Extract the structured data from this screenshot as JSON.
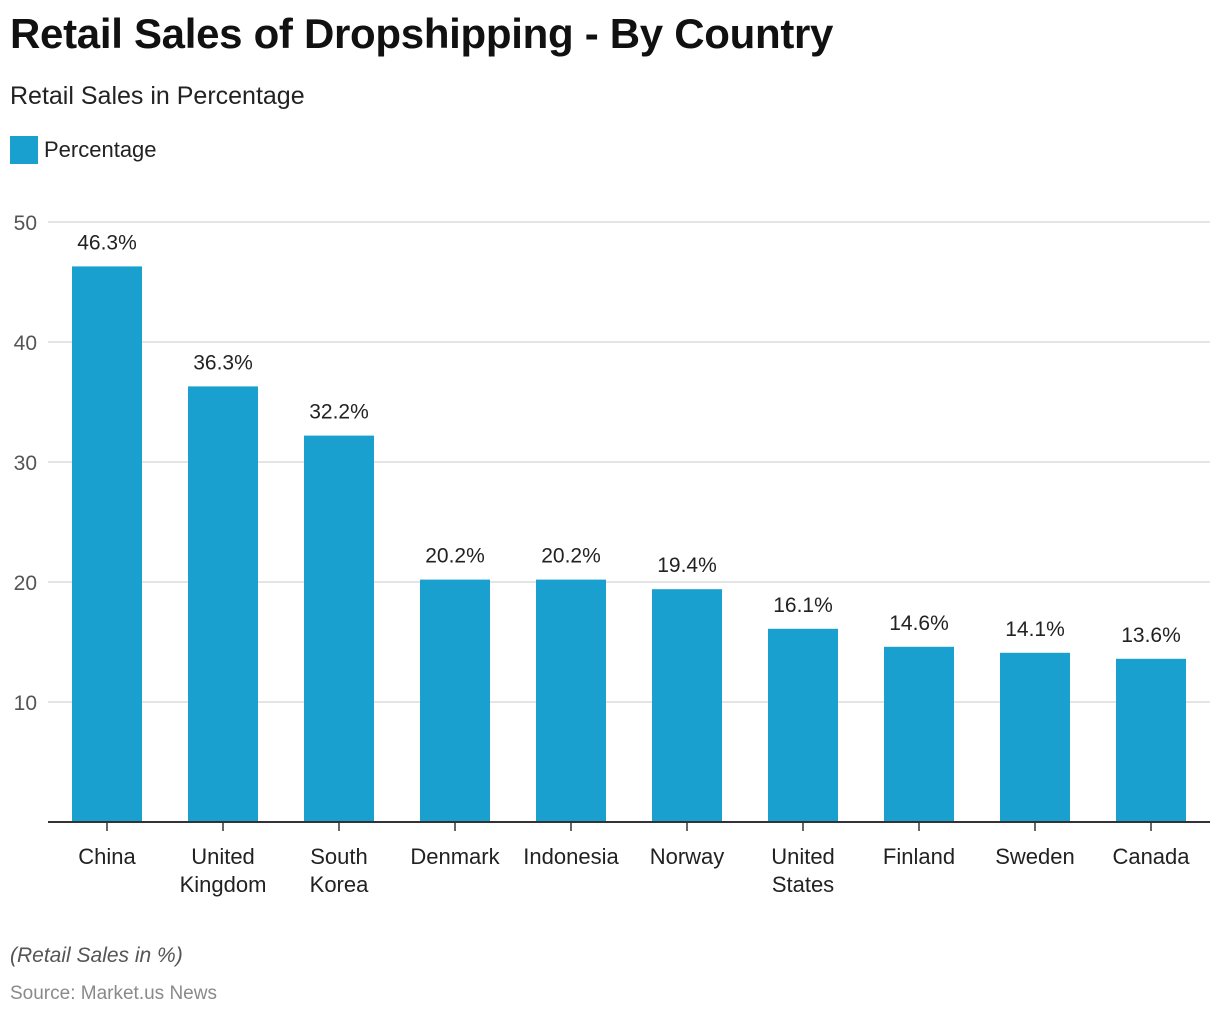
{
  "header": {
    "title": "Retail Sales of Dropshipping - By Country",
    "subtitle": "Retail Sales in Percentage"
  },
  "footer": {
    "note": "(Retail Sales in %)",
    "source": "Source: Market.us News"
  },
  "colors": {
    "bar": "#1aa0cf",
    "grid": "#d4d4d4",
    "axis": "#333333"
  },
  "chart_data": {
    "type": "bar",
    "title": "Retail Sales of Dropshipping - By Country",
    "subtitle": "Retail Sales in Percentage",
    "categories": [
      [
        "China"
      ],
      [
        "United",
        "Kingdom"
      ],
      [
        "South",
        "Korea"
      ],
      [
        "Denmark"
      ],
      [
        "Indonesia"
      ],
      [
        "Norway"
      ],
      [
        "United",
        "States"
      ],
      [
        "Finland"
      ],
      [
        "Sweden"
      ],
      [
        "Canada"
      ]
    ],
    "series": [
      {
        "name": "Percentage",
        "values": [
          46.3,
          36.3,
          32.2,
          20.2,
          20.2,
          19.4,
          16.1,
          14.6,
          14.1,
          13.6
        ],
        "labels": [
          "46.3%",
          "36.3%",
          "32.2%",
          "20.2%",
          "20.2%",
          "19.4%",
          "16.1%",
          "14.6%",
          "14.1%",
          "13.6%"
        ]
      }
    ],
    "ylim": [
      0,
      50
    ],
    "yticks": [
      10,
      20,
      30,
      40,
      50
    ],
    "grid": true,
    "legend": "top-left"
  }
}
